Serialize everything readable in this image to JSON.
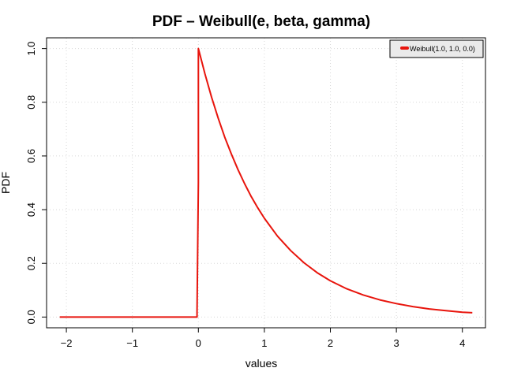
{
  "chart_data": {
    "type": "line",
    "title": "PDF – Weibull(e, beta, gamma)",
    "xlabel": "values",
    "ylabel": "PDF",
    "xlim": [
      -2.3,
      4.35
    ],
    "ylim": [
      -0.04,
      1.04
    ],
    "xticks": [
      -2,
      -1,
      0,
      1,
      2,
      3,
      4
    ],
    "xtick_labels": [
      "−2",
      "−1",
      "0",
      "1",
      "2",
      "3",
      "4"
    ],
    "yticks": [
      0.0,
      0.2,
      0.4,
      0.6,
      0.8,
      1.0
    ],
    "ytick_labels": [
      "0.0",
      "0.2",
      "0.4",
      "0.6",
      "0.8",
      "1.0"
    ],
    "grid": true,
    "legend_position": "top-right",
    "series": [
      {
        "name": "Weibull(1.0, 1.0, 0.0)",
        "color": "#e8140c",
        "x": [
          -2.1,
          -1.5,
          -1.0,
          -0.5,
          -0.02,
          -0.02,
          0.0,
          0.0,
          0.1,
          0.2,
          0.3,
          0.4,
          0.5,
          0.6,
          0.7,
          0.8,
          0.9,
          1.0,
          1.2,
          1.4,
          1.6,
          1.8,
          2.0,
          2.25,
          2.5,
          2.75,
          3.0,
          3.25,
          3.5,
          3.75,
          4.0,
          4.15
        ],
        "y": [
          0.0,
          0.0,
          0.0,
          0.0,
          0.0,
          0.02,
          0.5,
          1.0,
          0.905,
          0.819,
          0.741,
          0.67,
          0.607,
          0.549,
          0.497,
          0.449,
          0.407,
          0.368,
          0.301,
          0.247,
          0.202,
          0.165,
          0.135,
          0.105,
          0.082,
          0.064,
          0.05,
          0.039,
          0.03,
          0.024,
          0.018,
          0.016
        ]
      }
    ]
  }
}
